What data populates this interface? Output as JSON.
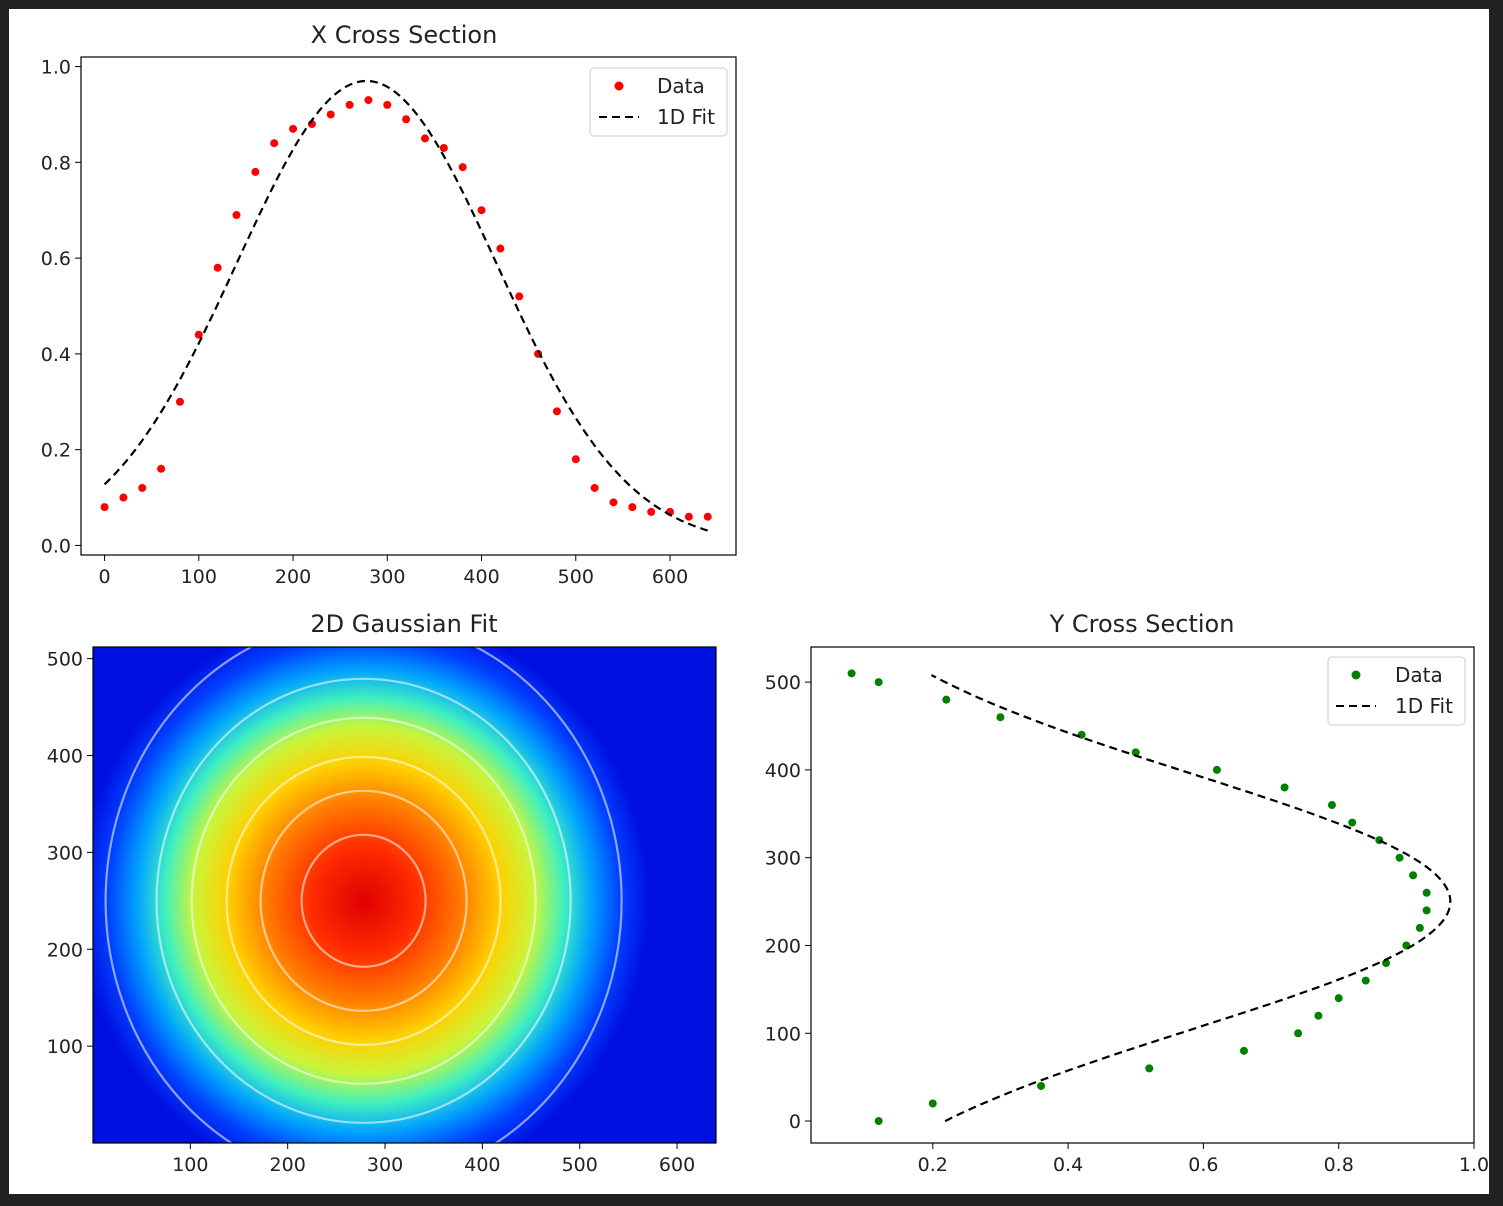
{
  "chart_data": [
    {
      "id": "x-cross-section",
      "type": "scatter",
      "title": "X Cross Section",
      "xlim": [
        -25,
        670
      ],
      "ylim": [
        -0.02,
        1.02
      ],
      "xticks": [
        0,
        100,
        200,
        300,
        400,
        500,
        600
      ],
      "yticks": [
        0.0,
        0.2,
        0.4,
        0.6,
        0.8,
        1.0
      ],
      "legend": {
        "position": "top-right",
        "entries": [
          "Data",
          "1D Fit"
        ]
      },
      "series": [
        {
          "name": "Data",
          "color": "#ff0000",
          "marker": "dot",
          "x": [
            0,
            20,
            40,
            60,
            80,
            100,
            120,
            140,
            160,
            180,
            200,
            220,
            240,
            260,
            280,
            300,
            320,
            340,
            360,
            380,
            400,
            420,
            440,
            460,
            480,
            500,
            520,
            540,
            560,
            580,
            600,
            620,
            640
          ],
          "y": [
            0.08,
            0.1,
            0.12,
            0.16,
            0.3,
            0.44,
            0.58,
            0.69,
            0.78,
            0.84,
            0.87,
            0.88,
            0.9,
            0.92,
            0.93,
            0.92,
            0.89,
            0.85,
            0.83,
            0.79,
            0.7,
            0.62,
            0.52,
            0.4,
            0.28,
            0.18,
            0.12,
            0.09,
            0.08,
            0.07,
            0.07,
            0.06,
            0.06
          ]
        },
        {
          "name": "1D Fit",
          "color": "#000000",
          "style": "dashed",
          "amplitude": 0.97,
          "center": 278,
          "sigma": 138,
          "x_range": [
            0,
            640
          ]
        }
      ]
    },
    {
      "id": "gaussian-2d",
      "type": "heatmap",
      "title": "2D Gaussian Fit",
      "xlim": [
        0,
        640
      ],
      "ylim": [
        0,
        512
      ],
      "xticks": [
        100,
        200,
        300,
        400,
        500,
        600
      ],
      "yticks": [
        100,
        200,
        300,
        400,
        500
      ],
      "colormap": "jet",
      "center": [
        278,
        250
      ],
      "contour_levels": [
        "#ffffff",
        "#ffffff",
        "#ffffff",
        "#ffffff",
        "#ffffff",
        "#ffffff"
      ]
    },
    {
      "id": "y-cross-section",
      "type": "scatter",
      "title": "Y Cross Section",
      "xlim": [
        0.02,
        1.0
      ],
      "ylim": [
        -25,
        540
      ],
      "xticks": [
        0.2,
        0.4,
        0.6,
        0.8,
        1.0
      ],
      "yticks": [
        0,
        100,
        200,
        300,
        400,
        500
      ],
      "legend": {
        "position": "top-right",
        "entries": [
          "Data",
          "1D Fit"
        ]
      },
      "series": [
        {
          "name": "Data",
          "color": "#008000",
          "marker": "dot",
          "y": [
            0,
            20,
            40,
            60,
            80,
            100,
            120,
            140,
            160,
            180,
            200,
            220,
            240,
            260,
            280,
            300,
            320,
            340,
            360,
            380,
            400,
            420,
            440,
            460,
            480,
            500,
            510
          ],
          "x": [
            0.12,
            0.2,
            0.36,
            0.52,
            0.66,
            0.74,
            0.77,
            0.8,
            0.84,
            0.87,
            0.9,
            0.92,
            0.93,
            0.93,
            0.91,
            0.89,
            0.86,
            0.82,
            0.79,
            0.72,
            0.62,
            0.5,
            0.42,
            0.3,
            0.22,
            0.12,
            0.08
          ]
        },
        {
          "name": "1D Fit",
          "color": "#000000",
          "style": "dashed",
          "amplitude": 0.965,
          "center": 250,
          "sigma": 145,
          "y_range": [
            0,
            510
          ]
        }
      ]
    }
  ]
}
